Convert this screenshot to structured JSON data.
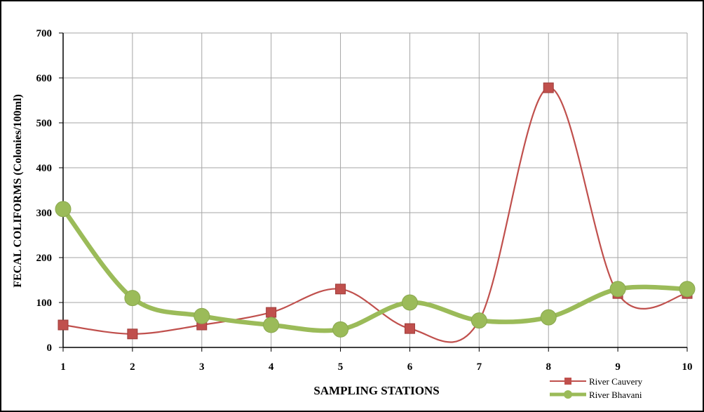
{
  "chart_data": {
    "type": "line",
    "title": "",
    "xlabel": "SAMPLING STATIONS",
    "ylabel": "FECAL COLIFORMS (Colonies/100ml)",
    "x": [
      1,
      2,
      3,
      4,
      5,
      6,
      7,
      8,
      9,
      10
    ],
    "xticks": [
      "1",
      "2",
      "3",
      "4",
      "5",
      "6",
      "7",
      "8",
      "9",
      "10"
    ],
    "yticks": [
      "0",
      "100",
      "200",
      "300",
      "400",
      "500",
      "600",
      "700"
    ],
    "xlim": [
      1,
      10
    ],
    "ylim": [
      0,
      700
    ],
    "grid": true,
    "smooth": true,
    "legend_position": "bottom-right",
    "series": [
      {
        "name": "River Cauvery",
        "values": [
          50,
          30,
          50,
          78,
          130,
          42,
          60,
          578,
          120,
          120
        ],
        "color": "#c0504d",
        "marker": "square"
      },
      {
        "name": "River Bhavani",
        "values": [
          308,
          110,
          70,
          50,
          40,
          100,
          60,
          67,
          130,
          130
        ],
        "color": "#9bbb59",
        "marker": "circle"
      }
    ]
  }
}
